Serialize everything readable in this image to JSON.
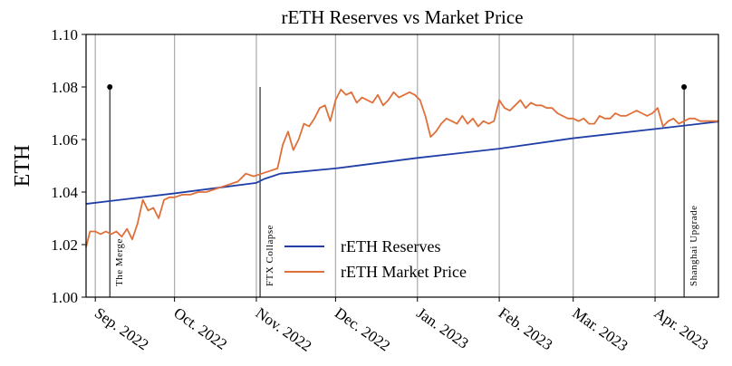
{
  "chart_data": {
    "type": "line",
    "title": "rETH Reserves vs Market Price",
    "ylabel": "ETH",
    "xlim": [
      -3.5,
      236
    ],
    "xticks": [
      {
        "value": 0,
        "label": "Sep. 2022"
      },
      {
        "value": 30,
        "label": "Oct. 2022"
      },
      {
        "value": 61,
        "label": "Nov. 2022"
      },
      {
        "value": 91,
        "label": "Dec. 2022"
      },
      {
        "value": 122,
        "label": "Jan. 2023"
      },
      {
        "value": 153,
        "label": "Feb. 2023"
      },
      {
        "value": 181,
        "label": "Mar. 2023"
      },
      {
        "value": 212,
        "label": "Apr. 2023"
      }
    ],
    "ylim": [
      1.0,
      1.1
    ],
    "yticks": [
      {
        "value": 1.0,
        "label": "1.00"
      },
      {
        "value": 1.02,
        "label": "1.02"
      },
      {
        "value": 1.04,
        "label": "1.04"
      },
      {
        "value": 1.06,
        "label": "1.06"
      },
      {
        "value": 1.08,
        "label": "1.08"
      },
      {
        "value": 1.1,
        "label": "1.10"
      }
    ],
    "grid": "x",
    "legend": "lower center",
    "series": [
      {
        "name": "rETH Reserves",
        "color": "#1f3ea8",
        "x": [
          -3.5,
          30,
          61,
          64,
          67,
          70,
          91,
          122,
          153,
          181,
          212,
          236
        ],
        "values": [
          1.0355,
          1.0395,
          1.0435,
          1.045,
          1.046,
          1.047,
          1.049,
          1.053,
          1.0565,
          1.0605,
          1.064,
          1.0668
        ]
      },
      {
        "name": "rETH Market Price",
        "color": "#e0703a",
        "x": [
          -3.5,
          -2,
          0,
          2,
          4,
          6,
          8,
          10,
          12,
          14,
          16,
          18,
          20,
          22,
          24,
          26,
          28,
          30,
          33,
          36,
          39,
          42,
          45,
          48,
          51,
          54,
          57,
          60,
          63,
          66,
          69,
          71,
          73,
          75,
          77,
          79,
          81,
          83,
          85,
          87,
          89,
          91,
          93,
          95,
          97,
          99,
          101,
          103,
          105,
          107,
          109,
          111,
          113,
          115,
          117,
          119,
          121,
          123,
          125,
          127,
          129,
          131,
          133,
          135,
          137,
          139,
          141,
          143,
          145,
          147,
          149,
          151,
          153,
          155,
          157,
          159,
          161,
          163,
          165,
          167,
          169,
          171,
          173,
          175,
          177,
          179,
          181,
          183,
          185,
          187,
          189,
          191,
          193,
          195,
          197,
          199,
          201,
          203,
          205,
          207,
          209,
          211,
          213,
          215,
          217,
          219,
          221,
          223,
          225,
          227,
          229,
          231,
          233,
          236
        ],
        "values": [
          1.019,
          1.025,
          1.025,
          1.024,
          1.025,
          1.024,
          1.025,
          1.023,
          1.026,
          1.022,
          1.028,
          1.037,
          1.033,
          1.034,
          1.03,
          1.037,
          1.038,
          1.038,
          1.039,
          1.039,
          1.04,
          1.04,
          1.041,
          1.042,
          1.043,
          1.044,
          1.047,
          1.046,
          1.047,
          1.048,
          1.049,
          1.058,
          1.063,
          1.056,
          1.06,
          1.066,
          1.065,
          1.068,
          1.072,
          1.073,
          1.067,
          1.075,
          1.079,
          1.077,
          1.078,
          1.074,
          1.076,
          1.075,
          1.074,
          1.077,
          1.073,
          1.075,
          1.078,
          1.076,
          1.077,
          1.078,
          1.077,
          1.075,
          1.069,
          1.061,
          1.063,
          1.066,
          1.068,
          1.067,
          1.066,
          1.069,
          1.066,
          1.068,
          1.065,
          1.067,
          1.066,
          1.067,
          1.075,
          1.072,
          1.071,
          1.073,
          1.075,
          1.072,
          1.074,
          1.073,
          1.073,
          1.072,
          1.072,
          1.07,
          1.069,
          1.068,
          1.068,
          1.067,
          1.068,
          1.066,
          1.066,
          1.069,
          1.068,
          1.068,
          1.07,
          1.069,
          1.069,
          1.07,
          1.071,
          1.07,
          1.069,
          1.07,
          1.072,
          1.065,
          1.067,
          1.068,
          1.066,
          1.067,
          1.068,
          1.068,
          1.067,
          1.067,
          1.067,
          1.067
        ]
      }
    ],
    "events": [
      {
        "label": "The Merge",
        "x": 5.5,
        "top": 1.08,
        "marker": true
      },
      {
        "label": "FTX Collapse",
        "x": 62.4,
        "top": 1.08,
        "marker": false
      },
      {
        "label": "Shanghai Upgrade",
        "x": 223,
        "top": 1.08,
        "marker": true
      }
    ]
  }
}
